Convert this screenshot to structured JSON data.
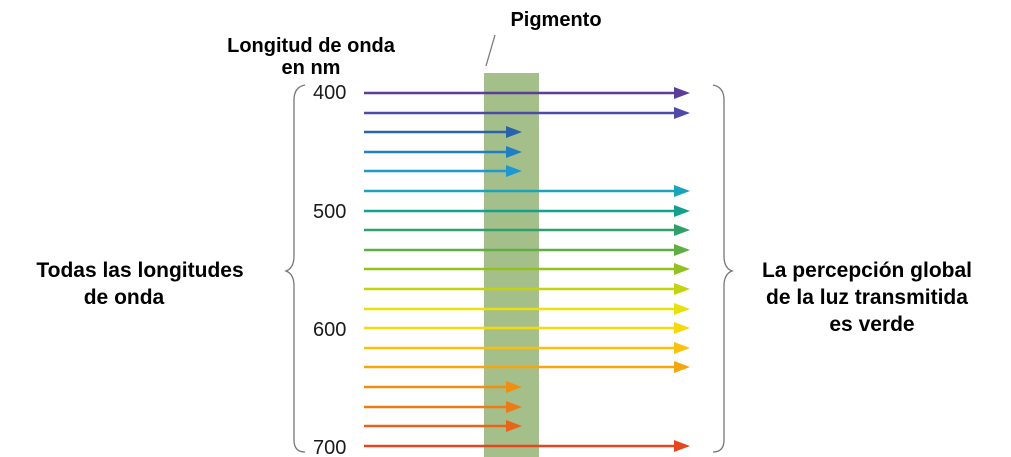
{
  "title_pigment": "Pigmento",
  "wavelength_title": [
    "Longitud de onda",
    "en nm"
  ],
  "left_label": [
    "Todas las longitudes",
    "de onda"
  ],
  "right_label": [
    "La percepción global",
    "de la luz transmitida",
    "es verde"
  ],
  "ticks": [
    {
      "label": "400",
      "row": 0
    },
    {
      "label": "500",
      "row": 6
    },
    {
      "label": "600",
      "row": 13
    },
    {
      "label": "700",
      "row": 18
    }
  ],
  "pigment_color": "#a5bf8a",
  "rays": [
    {
      "color": "#5b3f96",
      "transmitted": true
    },
    {
      "color": "#4f4aa6",
      "transmitted": true
    },
    {
      "color": "#2a63a8",
      "transmitted": false
    },
    {
      "color": "#1f7fc2",
      "transmitted": false
    },
    {
      "color": "#1e98cf",
      "transmitted": false
    },
    {
      "color": "#1aa3bd",
      "transmitted": true
    },
    {
      "color": "#14a08f",
      "transmitted": true
    },
    {
      "color": "#2fa06a",
      "transmitted": true
    },
    {
      "color": "#5fae43",
      "transmitted": true
    },
    {
      "color": "#93c21f",
      "transmitted": true
    },
    {
      "color": "#c3d30f",
      "transmitted": true
    },
    {
      "color": "#e9e00c",
      "transmitted": true
    },
    {
      "color": "#f6d90d",
      "transmitted": true
    },
    {
      "color": "#f8c10d",
      "transmitted": true
    },
    {
      "color": "#f5a60f",
      "transmitted": true
    },
    {
      "color": "#f08e12",
      "transmitted": false
    },
    {
      "color": "#ec7a16",
      "transmitted": false
    },
    {
      "color": "#e8641b",
      "transmitted": false
    },
    {
      "color": "#e4461e",
      "transmitted": true
    },
    {
      "color": "#d92722",
      "transmitted": true
    }
  ]
}
